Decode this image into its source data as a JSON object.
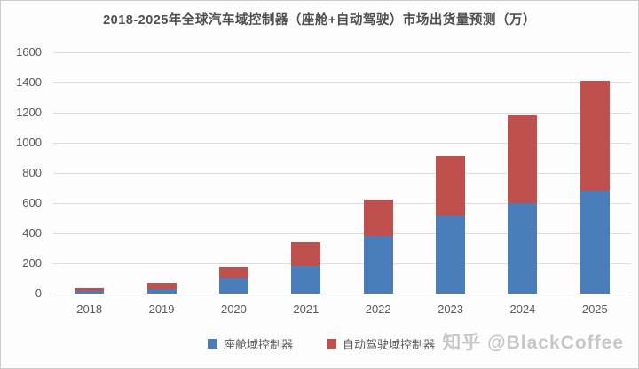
{
  "chart_data": {
    "type": "bar",
    "stacked": true,
    "title": "2018-2025年全球汽车域控制器（座舱+自动驾驶）市场出货量预测（万）",
    "categories": [
      "2018",
      "2019",
      "2020",
      "2021",
      "2022",
      "2023",
      "2024",
      "2025"
    ],
    "series": [
      {
        "name": "座舱域控制器",
        "color": "#4a7ebb",
        "values": [
          15,
          30,
          105,
          185,
          385,
          515,
          600,
          680
        ]
      },
      {
        "name": "自动驾驶域控制器",
        "color": "#c0504d",
        "values": [
          20,
          40,
          70,
          155,
          240,
          395,
          580,
          730
        ]
      }
    ],
    "totals": [
      35,
      70,
      175,
      340,
      625,
      910,
      1180,
      1410
    ],
    "xlabel": "",
    "ylabel": "",
    "ylim": [
      0,
      1600
    ],
    "yticks": [
      0,
      200,
      400,
      600,
      800,
      1000,
      1200,
      1400,
      1600
    ],
    "grid": true,
    "legend_position": "bottom"
  },
  "watermark": {
    "text": "知乎 @BlackCoffee"
  },
  "colors": {
    "cockpit_blue": "#4a7ebb",
    "autonomous_red": "#c0504d",
    "gridline": "#dcdcdc",
    "text": "#595959"
  }
}
